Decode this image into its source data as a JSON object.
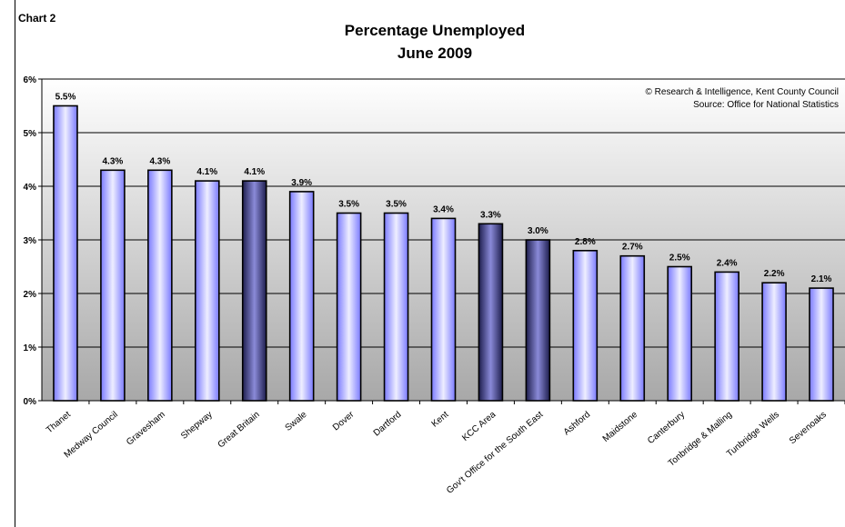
{
  "chart_label": "Chart 2",
  "chart_data": {
    "type": "bar",
    "title": "Percentage Unemployed",
    "subtitle": "June 2009",
    "xlabel": "",
    "ylabel": "",
    "ylim": [
      0,
      6
    ],
    "yticks": [
      "0%",
      "1%",
      "2%",
      "3%",
      "4%",
      "5%",
      "6%"
    ],
    "grid": true,
    "legend": "none",
    "categories": [
      "Thanet",
      "Medway Council",
      "Gravesham",
      "Shepway",
      "Great Britain",
      "Swale",
      "Dover",
      "Dartford",
      "Kent",
      "KCC Area",
      "Gov't Office for the South East",
      "Ashford",
      "Maidstone",
      "Canterbury",
      "Tonbridge & Malling",
      "Tunbridge Wells",
      "Sevenoaks"
    ],
    "values": [
      5.5,
      4.3,
      4.3,
      4.1,
      4.1,
      3.9,
      3.5,
      3.5,
      3.4,
      3.3,
      3.0,
      2.8,
      2.7,
      2.5,
      2.4,
      2.2,
      2.1
    ],
    "data_labels": [
      "5.5%",
      "4.3%",
      "4.3%",
      "4.1%",
      "4.1%",
      "3.9%",
      "3.5%",
      "3.5%",
      "3.4%",
      "3.3%",
      "3.0%",
      "2.8%",
      "2.7%",
      "2.5%",
      "2.4%",
      "2.2%",
      "2.1%"
    ],
    "highlight": [
      false,
      false,
      false,
      false,
      true,
      false,
      false,
      false,
      false,
      true,
      true,
      false,
      false,
      false,
      false,
      false,
      false
    ],
    "colors": {
      "bar": "#8080ff",
      "highlight_bar": "#1e1e4e",
      "bar_center": "#eeeeff",
      "highlight_center": "#8a8ad8"
    },
    "annotations": [
      "© Research & Intelligence, Kent County Council",
      "Source: Office for National Statistics"
    ]
  }
}
